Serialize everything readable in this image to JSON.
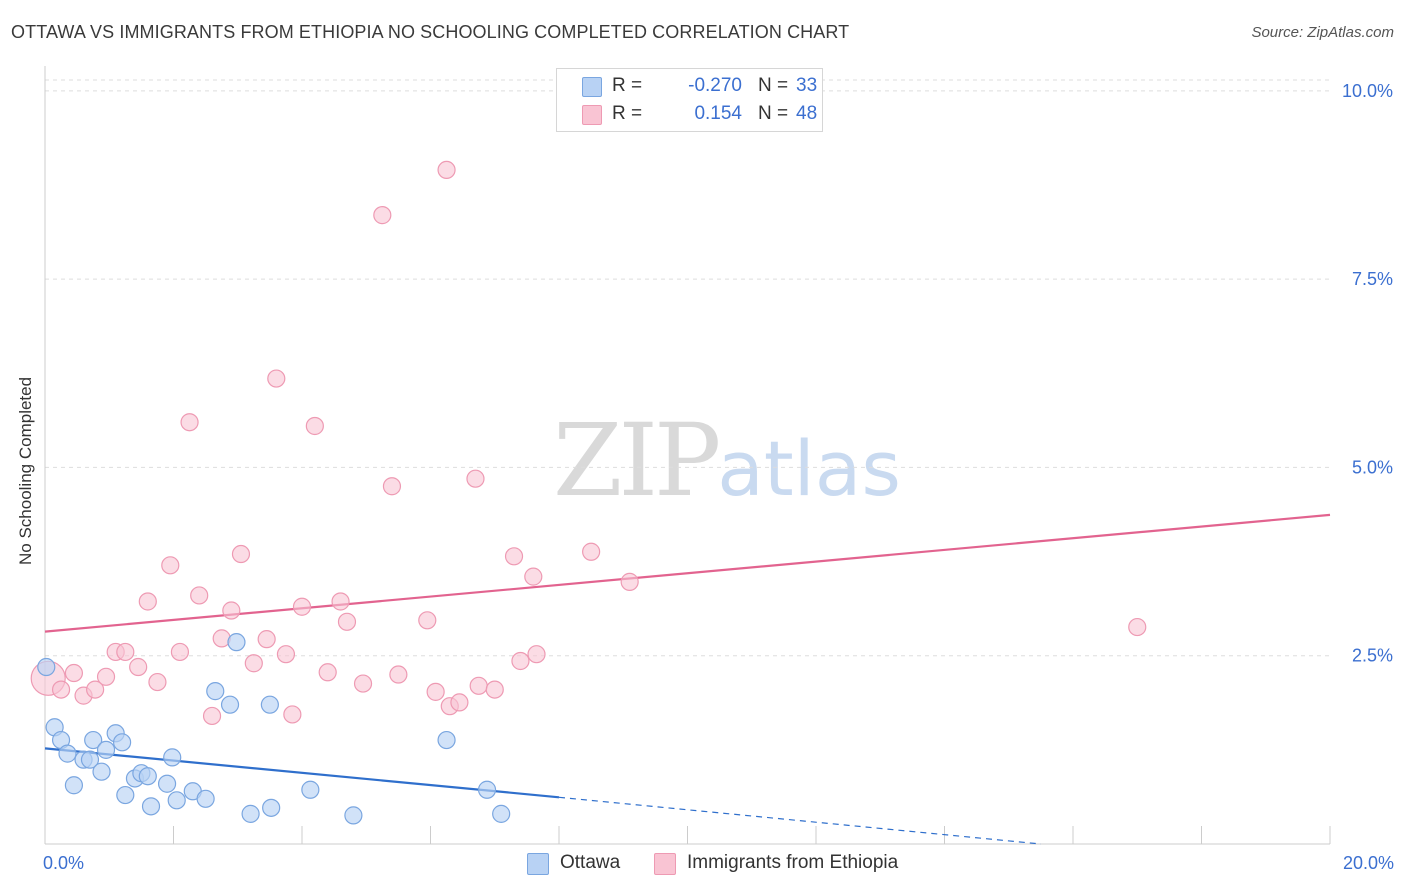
{
  "title": "OTTAWA VS IMMIGRANTS FROM ETHIOPIA NO SCHOOLING COMPLETED CORRELATION CHART",
  "source": "Source: ZipAtlas.com",
  "watermark": {
    "zip": "ZIP",
    "atlas": "atlas"
  },
  "legend": {
    "rows": [
      {
        "r_label": "R =",
        "r_value": "-0.270",
        "n_label": "N =",
        "n_value": "33"
      },
      {
        "r_label": "R =",
        "r_value": "0.154",
        "n_label": "N =",
        "n_value": "48"
      }
    ]
  },
  "bottom_legend": {
    "series1": "Ottawa",
    "series2": "Immigrants from Ethiopia"
  },
  "colors": {
    "ottawa_fill": "#b8d2f4",
    "ottawa_stroke": "#7aa6e0",
    "ottawa_line": "#2f6fcc",
    "ethiopia_fill": "#f9c4d3",
    "ethiopia_stroke": "#ee9ab3",
    "ethiopia_line": "#e2638f",
    "tick_label": "#3b6fd0",
    "grid": "#dddddd"
  },
  "chart_data": {
    "type": "scatter",
    "title": "OTTAWA VS IMMIGRANTS FROM ETHIOPIA NO SCHOOLING COMPLETED CORRELATION CHART",
    "xlabel": "",
    "ylabel": "No Schooling Completed",
    "xlim": [
      0,
      20
    ],
    "ylim": [
      0,
      10.25
    ],
    "x_tick_labels": [
      {
        "value": 0,
        "label": "0.0%"
      },
      {
        "value": 20,
        "label": "20.0%"
      }
    ],
    "y_tick_labels": [
      {
        "value": 2.5,
        "label": "2.5%"
      },
      {
        "value": 5.0,
        "label": "5.0%"
      },
      {
        "value": 7.5,
        "label": "7.5%"
      },
      {
        "value": 10.0,
        "label": "10.0%"
      }
    ],
    "series": [
      {
        "name": "Ottawa",
        "r": -0.27,
        "n": 33,
        "trend": {
          "x0": 0,
          "y0": 1.27,
          "x1": 8.0,
          "y1": 0.62,
          "dash_to_x": 15.5,
          "dash_to_y": 0.0
        },
        "points": [
          [
            0.02,
            2.35
          ],
          [
            0.15,
            1.55
          ],
          [
            0.25,
            1.38
          ],
          [
            0.35,
            1.2
          ],
          [
            0.45,
            0.78
          ],
          [
            0.6,
            1.12
          ],
          [
            0.7,
            1.12
          ],
          [
            0.75,
            1.38
          ],
          [
            0.88,
            0.96
          ],
          [
            0.95,
            1.25
          ],
          [
            1.1,
            1.47
          ],
          [
            1.2,
            1.35
          ],
          [
            1.25,
            0.65
          ],
          [
            1.4,
            0.87
          ],
          [
            1.5,
            0.94
          ],
          [
            1.6,
            0.9
          ],
          [
            1.65,
            0.5
          ],
          [
            1.9,
            0.8
          ],
          [
            1.98,
            1.15
          ],
          [
            2.05,
            0.58
          ],
          [
            2.3,
            0.7
          ],
          [
            2.5,
            0.6
          ],
          [
            2.65,
            2.03
          ],
          [
            2.88,
            1.85
          ],
          [
            2.98,
            2.68
          ],
          [
            3.2,
            0.4
          ],
          [
            3.5,
            1.85
          ],
          [
            3.52,
            0.48
          ],
          [
            4.13,
            0.72
          ],
          [
            4.8,
            0.38
          ],
          [
            6.25,
            1.38
          ],
          [
            6.88,
            0.72
          ],
          [
            7.1,
            0.4
          ]
        ]
      },
      {
        "name": "Immigrants from Ethiopia",
        "r": 0.154,
        "n": 48,
        "trend": {
          "x0": 0,
          "y0": 2.82,
          "x1": 20,
          "y1": 4.37
        },
        "points": [
          [
            0.05,
            2.2
          ],
          [
            0.25,
            2.05
          ],
          [
            0.45,
            2.27
          ],
          [
            0.6,
            1.97
          ],
          [
            0.78,
            2.05
          ],
          [
            0.95,
            2.22
          ],
          [
            1.1,
            2.55
          ],
          [
            1.25,
            2.55
          ],
          [
            1.45,
            2.35
          ],
          [
            1.6,
            3.22
          ],
          [
            1.75,
            2.15
          ],
          [
            1.95,
            3.7
          ],
          [
            2.1,
            2.55
          ],
          [
            2.25,
            5.6
          ],
          [
            2.4,
            3.3
          ],
          [
            2.6,
            1.7
          ],
          [
            2.75,
            2.73
          ],
          [
            2.9,
            3.1
          ],
          [
            3.05,
            3.85
          ],
          [
            3.25,
            2.4
          ],
          [
            3.45,
            2.72
          ],
          [
            3.6,
            6.18
          ],
          [
            3.75,
            2.52
          ],
          [
            3.85,
            1.72
          ],
          [
            4.0,
            3.15
          ],
          [
            4.2,
            5.55
          ],
          [
            4.4,
            2.28
          ],
          [
            4.6,
            3.22
          ],
          [
            4.7,
            2.95
          ],
          [
            4.95,
            2.13
          ],
          [
            5.25,
            8.35
          ],
          [
            5.4,
            4.75
          ],
          [
            5.5,
            2.25
          ],
          [
            5.95,
            2.97
          ],
          [
            6.08,
            2.02
          ],
          [
            6.25,
            8.95
          ],
          [
            6.3,
            1.83
          ],
          [
            6.45,
            1.88
          ],
          [
            6.7,
            4.85
          ],
          [
            6.75,
            2.1
          ],
          [
            7.0,
            2.05
          ],
          [
            7.3,
            3.82
          ],
          [
            7.4,
            2.43
          ],
          [
            7.6,
            3.55
          ],
          [
            7.65,
            2.52
          ],
          [
            8.5,
            3.88
          ],
          [
            9.1,
            3.48
          ],
          [
            17.0,
            2.88
          ]
        ]
      }
    ]
  }
}
